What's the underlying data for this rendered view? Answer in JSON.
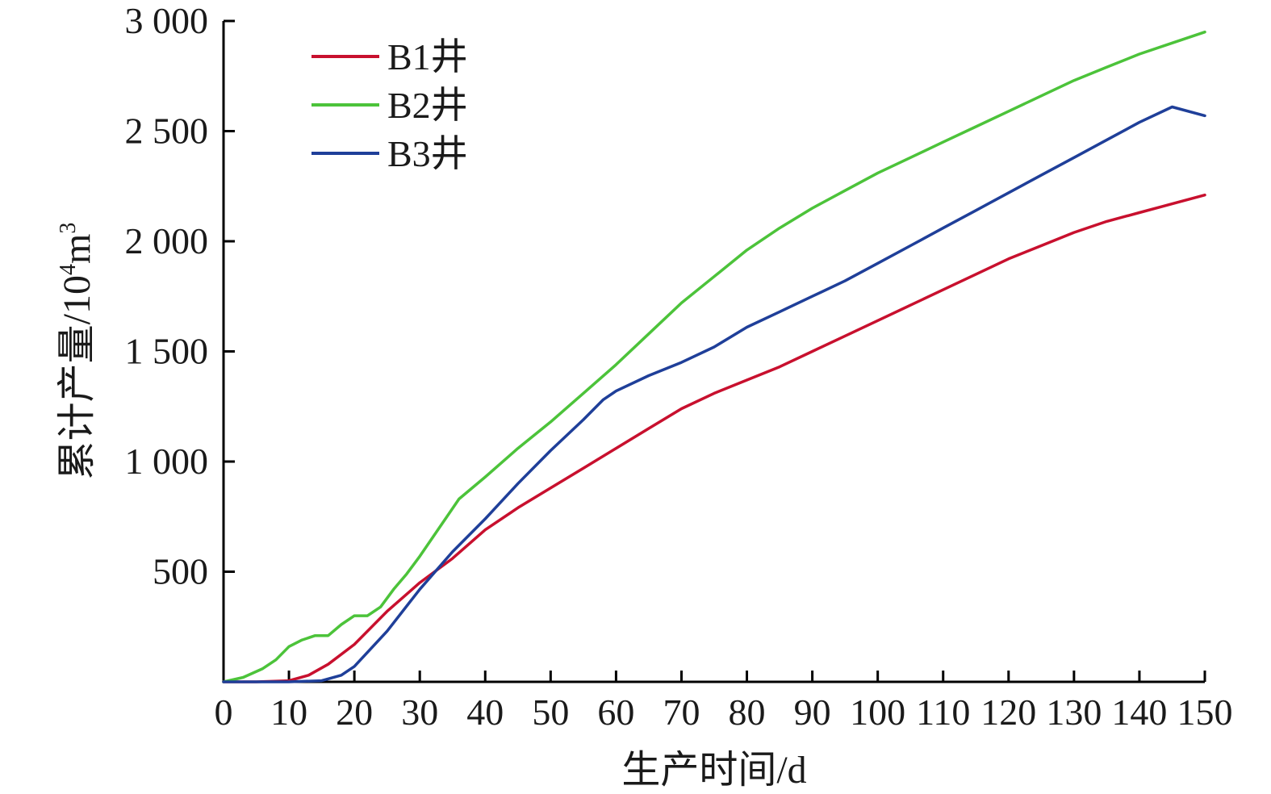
{
  "chart_data": {
    "type": "line",
    "xlabel": "生产时间/d",
    "ylabel_main": "累计产量/10",
    "ylabel_sup": "4",
    "ylabel_unit": "m",
    "ylabel_unit_sup": "3",
    "xlim": [
      0,
      150
    ],
    "ylim": [
      0,
      3000
    ],
    "x_ticks": [
      0,
      10,
      20,
      30,
      40,
      50,
      60,
      70,
      80,
      90,
      100,
      110,
      120,
      130,
      140,
      150
    ],
    "x_tick_labels": [
      "0",
      "10",
      "20",
      "30",
      "40",
      "50",
      "60",
      "70",
      "80",
      "90",
      "100",
      "110",
      "120",
      "130",
      "140",
      "150"
    ],
    "y_ticks": [
      500,
      1000,
      1500,
      2000,
      2500,
      3000
    ],
    "y_tick_labels": [
      "500",
      "1 000",
      "1 500",
      "2 000",
      "2 500",
      "3 000"
    ],
    "grid": false,
    "legend_position": "top-left",
    "series": [
      {
        "name": "B1井",
        "color": "#c8102e",
        "x": [
          0,
          5,
          10,
          13,
          16,
          20,
          25,
          30,
          35,
          40,
          45,
          50,
          55,
          60,
          65,
          70,
          75,
          80,
          85,
          90,
          95,
          100,
          105,
          110,
          115,
          120,
          125,
          130,
          135,
          140,
          145,
          150
        ],
        "y": [
          0,
          0,
          5,
          30,
          80,
          170,
          320,
          450,
          560,
          690,
          790,
          880,
          970,
          1060,
          1150,
          1240,
          1310,
          1370,
          1430,
          1500,
          1570,
          1640,
          1710,
          1780,
          1850,
          1920,
          1980,
          2040,
          2090,
          2130,
          2170,
          2210
        ]
      },
      {
        "name": "B2井",
        "color": "#4cc33a",
        "x": [
          0,
          3,
          6,
          8,
          10,
          12,
          14,
          16,
          18,
          20,
          22,
          24,
          26,
          28,
          30,
          33,
          36,
          40,
          45,
          50,
          55,
          60,
          65,
          70,
          75,
          80,
          85,
          90,
          95,
          100,
          105,
          110,
          115,
          120,
          125,
          130,
          135,
          140,
          145,
          150
        ],
        "y": [
          0,
          20,
          60,
          100,
          160,
          190,
          210,
          210,
          260,
          300,
          300,
          340,
          420,
          490,
          570,
          700,
          830,
          930,
          1060,
          1180,
          1310,
          1440,
          1580,
          1720,
          1840,
          1960,
          2060,
          2150,
          2230,
          2310,
          2380,
          2450,
          2520,
          2590,
          2660,
          2730,
          2790,
          2850,
          2900,
          2950
        ]
      },
      {
        "name": "B3井",
        "color": "#1f3f99",
        "x": [
          0,
          10,
          15,
          18,
          20,
          25,
          30,
          35,
          40,
          45,
          50,
          55,
          58,
          60,
          65,
          70,
          75,
          80,
          85,
          90,
          95,
          100,
          105,
          110,
          115,
          120,
          125,
          130,
          135,
          140,
          145,
          150
        ],
        "y": [
          0,
          0,
          5,
          30,
          70,
          230,
          420,
          590,
          740,
          900,
          1050,
          1190,
          1280,
          1320,
          1390,
          1450,
          1520,
          1610,
          1680,
          1750,
          1820,
          1900,
          1980,
          2060,
          2140,
          2220,
          2300,
          2380,
          2460,
          2540,
          2610,
          2570
        ]
      }
    ]
  }
}
